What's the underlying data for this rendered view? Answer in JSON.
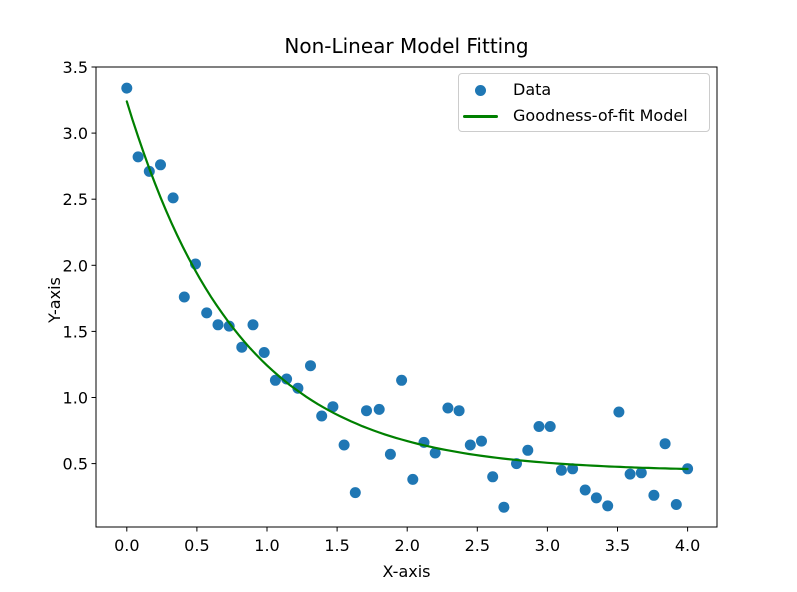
{
  "figure": {
    "background_color": "#ffffff",
    "text_color": "#000000"
  },
  "chart_data": {
    "type": "scatter",
    "title": "Non-Linear Model Fitting",
    "xlabel": "X-axis",
    "ylabel": "Y-axis",
    "xlim": [
      -0.22,
      4.21
    ],
    "ylim": [
      0.02,
      3.5
    ],
    "grid": false,
    "x_ticks": [
      0.0,
      0.5,
      1.0,
      1.5,
      2.0,
      2.5,
      3.0,
      3.5,
      4.0
    ],
    "x_tick_labels": [
      "0.0",
      "0.5",
      "1.0",
      "1.5",
      "2.0",
      "2.5",
      "3.0",
      "3.5",
      "4.0"
    ],
    "y_ticks": [
      0.5,
      1.0,
      1.5,
      2.0,
      2.5,
      3.0,
      3.5
    ],
    "y_tick_labels": [
      "0.5",
      "1.0",
      "1.5",
      "2.0",
      "2.5",
      "3.0",
      "3.5"
    ],
    "legend": {
      "position": "upper right",
      "entries": [
        {
          "label": "Data",
          "marker": "dot",
          "color": "#1f77b4"
        },
        {
          "label": "Goodness-of-fit Model",
          "marker": "line",
          "color": "#008000"
        }
      ]
    },
    "series": [
      {
        "name": "Data",
        "plot": "scatter",
        "color": "#1f77b4",
        "marker_size": 5.5,
        "x": [
          0.0,
          0.08,
          0.16,
          0.24,
          0.33,
          0.41,
          0.49,
          0.57,
          0.65,
          0.73,
          0.82,
          0.9,
          0.98,
          1.06,
          1.14,
          1.22,
          1.31,
          1.39,
          1.47,
          1.55,
          1.63,
          1.71,
          1.8,
          1.88,
          1.96,
          2.04,
          2.12,
          2.2,
          2.29,
          2.37,
          2.45,
          2.53,
          2.61,
          2.69,
          2.78,
          2.86,
          2.94,
          3.02,
          3.1,
          3.18,
          3.27,
          3.35,
          3.43,
          3.51,
          3.59,
          3.67,
          3.76,
          3.84,
          3.92,
          4.0
        ],
        "y": [
          3.34,
          2.82,
          2.71,
          2.76,
          2.51,
          1.76,
          2.01,
          1.64,
          1.55,
          1.54,
          1.38,
          1.55,
          1.34,
          1.13,
          1.14,
          1.07,
          1.24,
          0.86,
          0.93,
          0.64,
          0.28,
          0.9,
          0.91,
          0.57,
          1.13,
          0.38,
          0.66,
          0.58,
          0.92,
          0.9,
          0.64,
          0.67,
          0.4,
          0.17,
          0.5,
          0.6,
          0.78,
          0.78,
          0.45,
          0.46,
          0.3,
          0.24,
          0.18,
          0.89,
          0.42,
          0.43,
          0.26,
          0.65,
          0.19,
          0.46
        ]
      },
      {
        "name": "Goodness-of-fit Model",
        "plot": "line",
        "color": "#008000",
        "line_width": 2.2,
        "model": "a*exp(-b*x)+c",
        "params": {
          "a": 2.8,
          "b": 1.25,
          "c": 0.44
        },
        "x_range": [
          0.0,
          4.0
        ]
      }
    ]
  }
}
